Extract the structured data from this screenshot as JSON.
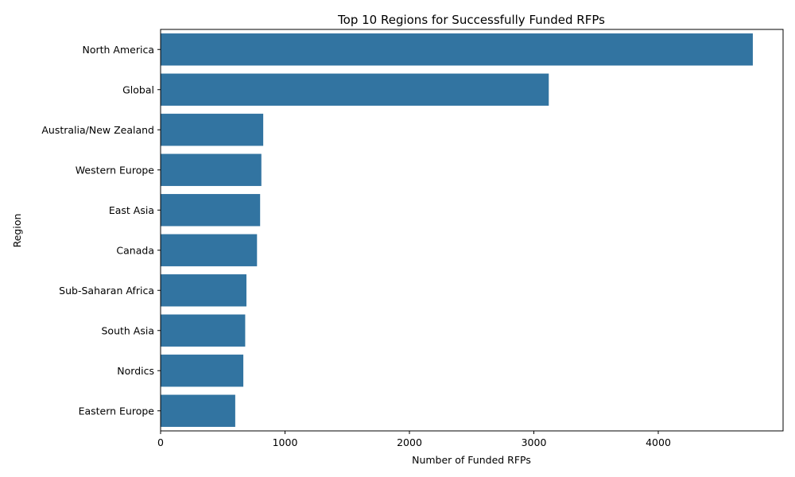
{
  "chart_data": {
    "type": "bar",
    "orientation": "horizontal",
    "title": "Top 10 Regions for Successfully Funded RFPs",
    "xlabel": "Number of Funded RFPs",
    "ylabel": "Region",
    "categories": [
      "North America",
      "Global",
      "Australia/New Zealand",
      "Western Europe",
      "East Asia",
      "Canada",
      "Sub-Saharan Africa",
      "South Asia",
      "Nordics",
      "Eastern Europe"
    ],
    "values": [
      4760,
      3120,
      825,
      810,
      800,
      775,
      690,
      680,
      665,
      600
    ],
    "xlim": [
      0,
      5000
    ],
    "xticks": [
      0,
      1000,
      2000,
      3000,
      4000
    ],
    "xtick_labels": [
      "0",
      "1000",
      "2000",
      "3000",
      "4000"
    ],
    "grid": false,
    "bar_color": "#3274a1"
  }
}
